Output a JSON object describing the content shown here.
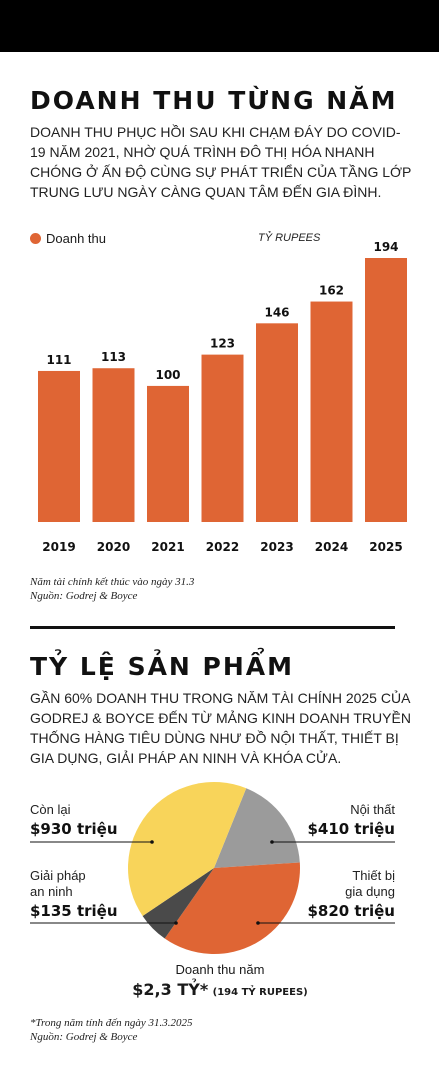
{
  "section1": {
    "title": "DOANH THU TỪNG NĂM",
    "description": "DOANH THU PHỤC HỒI SAU KHI CHẠM ĐÁY DO COVID-19 NĂM 2021, NHỜ QUÁ TRÌNH ĐÔ THỊ HÓA NHANH CHÓNG Ở ẤN ĐỘ CÙNG SỰ PHÁT TRIỂN CỦA TẦNG LỚP TRUNG LƯU NGÀY CÀNG QUAN TÂM ĐẾN GIA ĐÌNH.",
    "legend_label": "Doanh thu",
    "unit": "TỶ RUPEES",
    "note1": "Năm tài chính kết thúc vào ngày 31.3",
    "note2": "Nguồn: Godrej & Boyce"
  },
  "section2": {
    "title": "TỶ LỆ SẢN PHẨM",
    "description": "GẦN 60% DOANH THU TRONG NĂM TÀI CHÍNH 2025 CỦA GODREJ & BOYCE ĐẾN TỪ MẢNG KINH DOANH TRUYỀN THỐNG HÀNG TIÊU DÙNG NHƯ ĐỒ NỘI THẤT, THIẾT BỊ GIA DỤNG, GIẢI PHÁP AN NINH VÀ KHÓA CỬA.",
    "labels": {
      "con_lai_name": "Còn lại",
      "con_lai_value": "$930 triệu",
      "giai_phap_name_1": "Giải pháp",
      "giai_phap_name_2": "an ninh",
      "giai_phap_value": "$135 triệu",
      "noi_that_name": "Nội thất",
      "noi_that_value": "$410 triệu",
      "thiet_bi_name_1": "Thiết bị",
      "thiet_bi_name_2": "gia dụng",
      "thiet_bi_value": "$820 triệu"
    },
    "center_label": "Doanh thu năm",
    "center_value": "$2,3 TỶ*",
    "center_sub": "(194 TỶ RUPEES)",
    "note1": "*Trong năm tính đến ngày 31.3.2025",
    "note2": "Nguồn: Godrej & Boyce"
  },
  "colors": {
    "orange": "#df6534",
    "yellow": "#f8d45a",
    "gray": "#9b9b9b",
    "dark": "#4a4a4a"
  },
  "chart_data": [
    {
      "type": "bar",
      "categories": [
        "2019",
        "2020",
        "2021",
        "2022",
        "2023",
        "2024",
        "2025"
      ],
      "series": [
        {
          "name": "Doanh thu",
          "values": [
            111,
            113,
            100,
            123,
            146,
            162,
            194
          ]
        }
      ],
      "ylim": [
        0,
        200
      ],
      "grid": false,
      "legend": "top-left"
    },
    {
      "type": "pie",
      "categories": [
        "Nội thất",
        "Thiết bị gia dụng",
        "Giải pháp an ninh",
        "Còn lại"
      ],
      "values": [
        410,
        820,
        135,
        930
      ],
      "colors": [
        "#9b9b9b",
        "#df6534",
        "#4a4a4a",
        "#f8d45a"
      ]
    }
  ]
}
